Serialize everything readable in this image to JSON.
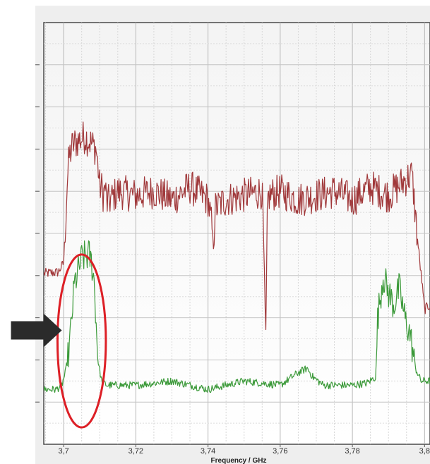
{
  "chart_data": {
    "type": "line",
    "title": "",
    "xlabel": "Frequency / GHz",
    "ylabel": "",
    "xlim": [
      3.6945,
      3.8015
    ],
    "ylim": [
      0,
      100
    ],
    "grid": true,
    "x_ticks": [
      3.7,
      3.72,
      3.74,
      3.76,
      3.78,
      3.8
    ],
    "x_tick_labels": [
      "3,7",
      "3,72",
      "3,74",
      "3,76",
      "3,78",
      "3,8"
    ],
    "y_ticks": [
      10,
      20,
      30,
      40,
      50,
      60,
      70,
      80,
      90
    ],
    "series": [
      {
        "color": "#a0383a",
        "x": [
          3.6945,
          3.6985,
          3.7,
          3.7005,
          3.701,
          3.7015,
          3.7025,
          3.704,
          3.706,
          3.708,
          3.709,
          3.7095,
          3.71,
          3.7105,
          3.711,
          3.7115,
          3.712,
          3.715,
          3.72,
          3.725,
          3.73,
          3.735,
          3.74,
          3.741,
          3.7415,
          3.742,
          3.745,
          3.75,
          3.755,
          3.7555,
          3.756,
          3.7565,
          3.757,
          3.76,
          3.765,
          3.77,
          3.775,
          3.78,
          3.785,
          3.79,
          3.795,
          3.7965,
          3.798,
          3.8,
          3.8015
        ],
        "values": [
          40.5,
          40.8,
          43,
          52,
          62,
          68,
          71,
          72,
          73,
          71,
          70,
          66,
          61,
          61,
          59,
          61,
          57,
          60,
          59,
          60,
          58,
          61,
          58,
          52,
          47,
          56,
          58,
          59,
          60,
          45,
          25,
          58,
          59,
          60,
          58,
          59,
          60,
          58,
          61,
          59,
          63,
          64,
          49,
          32,
          33
        ]
      },
      {
        "color": "#3c9a3a",
        "x": [
          3.6945,
          3.698,
          3.6995,
          3.7005,
          3.7015,
          3.703,
          3.705,
          3.707,
          3.708,
          3.7085,
          3.7095,
          3.7105,
          3.712,
          3.72,
          3.73,
          3.74,
          3.75,
          3.76,
          3.765,
          3.7675,
          3.769,
          3.772,
          3.78,
          3.784,
          3.7865,
          3.787,
          3.7885,
          3.79,
          3.7915,
          3.793,
          3.7945,
          3.796,
          3.7975,
          3.799,
          3.8015
        ],
        "values": [
          13,
          13,
          14,
          17,
          22,
          38,
          44,
          45,
          42,
          38,
          20,
          15,
          14,
          14,
          15,
          13,
          15,
          14,
          17,
          18,
          16,
          14,
          14,
          14.5,
          16,
          30,
          40,
          36,
          33,
          37,
          30,
          26,
          18,
          15,
          15
        ]
      }
    ],
    "annotations": [
      {
        "type": "ellipse",
        "color": "#dd1f26",
        "x_range": [
          3.6983,
          3.7117
        ],
        "y_range": [
          4,
          45
        ]
      },
      {
        "type": "arrow",
        "color": "#2b2b2b",
        "direction": "right",
        "x": 3.6995,
        "y": 27
      }
    ]
  }
}
